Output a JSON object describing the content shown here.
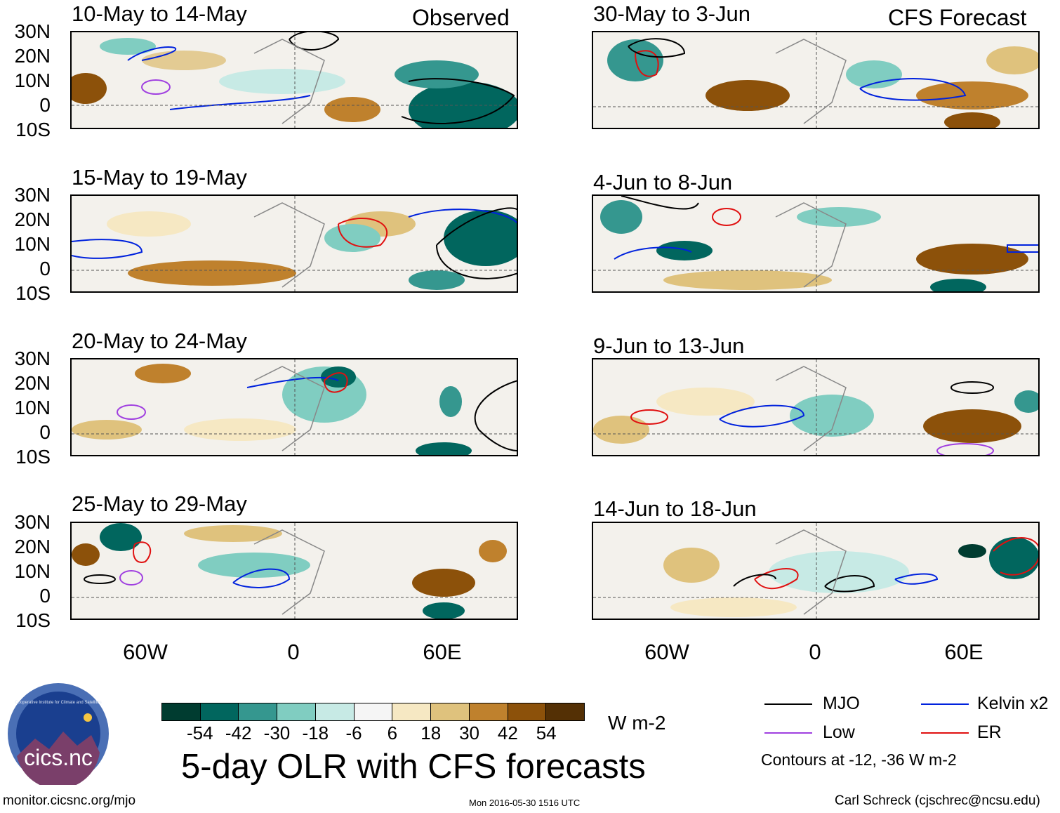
{
  "headers": {
    "left": "Observed",
    "right": "CFS Forecast"
  },
  "panels_left": [
    {
      "title": "10-May to 14-May"
    },
    {
      "title": "15-May to 19-May"
    },
    {
      "title": "20-May to 24-May"
    },
    {
      "title": "25-May to 29-May"
    }
  ],
  "panels_right": [
    {
      "title": "30-May to 3-Jun"
    },
    {
      "title": "4-Jun to 8-Jun"
    },
    {
      "title": "9-Jun to 13-Jun"
    },
    {
      "title": "14-Jun to 18-Jun"
    }
  ],
  "lat_labels": [
    "30N",
    "20N",
    "10N",
    "0",
    "10S"
  ],
  "lon_labels": [
    "60W",
    "0",
    "60E"
  ],
  "colorbar": {
    "colors": [
      "#003c30",
      "#01665e",
      "#35978f",
      "#80cdc1",
      "#c7eae5",
      "#f5f5f5",
      "#f6e8c3",
      "#dfc27d",
      "#bf812d",
      "#8c510a",
      "#543005"
    ],
    "labels": [
      "-54",
      "-42",
      "-30",
      "-18",
      "-6",
      "6",
      "18",
      "30",
      "42",
      "54"
    ],
    "units": "W m-2"
  },
  "main_title": "5-day OLR with CFS forecasts",
  "legend": {
    "items": [
      {
        "label": "MJO",
        "color": "#000000"
      },
      {
        "label": "Kelvin x2",
        "color": "#0022dd"
      },
      {
        "label": "Low",
        "color": "#a040e0"
      },
      {
        "label": "ER",
        "color": "#e01010"
      }
    ],
    "note": "Contours at -12, -36 W m-2"
  },
  "logo": {
    "text": "cics.nc",
    "ring_text": "Cooperative Institute for Climate and Satellites"
  },
  "footer": {
    "left": "monitor.cicsnc.org/mjo",
    "center": "Mon 2016-05-30 1516 UTC",
    "right": "Carl Schreck (cjschrec@ncsu.edu)"
  }
}
